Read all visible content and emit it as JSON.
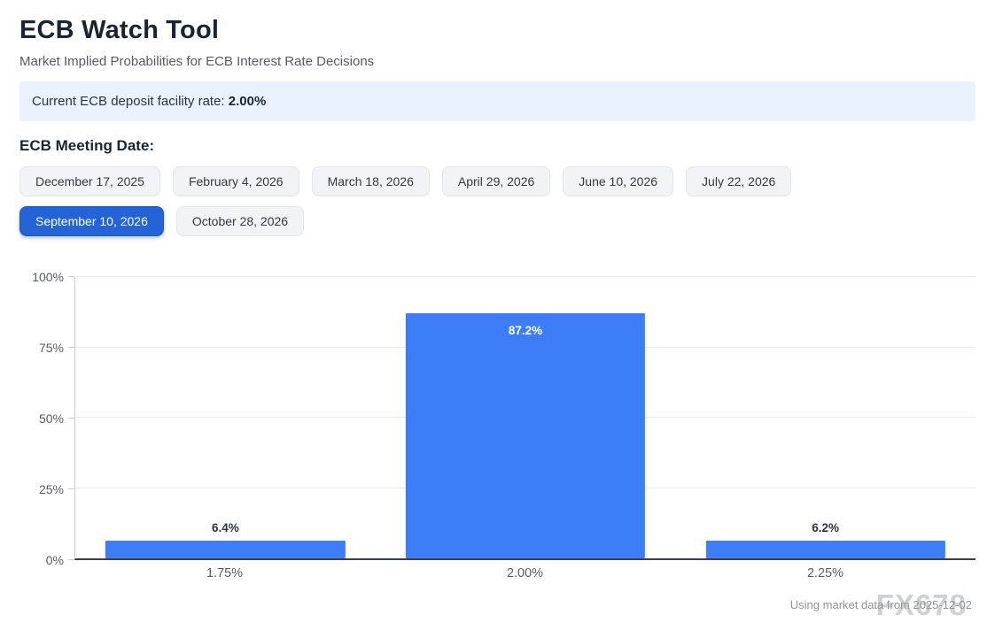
{
  "page": {
    "title": "ECB Watch Tool",
    "subtitle": "Market Implied Probabilities for ECB Interest Rate Decisions"
  },
  "info_bar": {
    "label": "Current ECB deposit facility rate: ",
    "value": "2.00%"
  },
  "meeting_section": {
    "heading": "ECB Meeting Date:",
    "dates": [
      {
        "label": "December 17, 2025",
        "selected": false
      },
      {
        "label": "February 4, 2026",
        "selected": false
      },
      {
        "label": "March 18, 2026",
        "selected": false
      },
      {
        "label": "April 29, 2026",
        "selected": false
      },
      {
        "label": "June 10, 2026",
        "selected": false
      },
      {
        "label": "July 22, 2026",
        "selected": false
      },
      {
        "label": "September 10, 2026",
        "selected": true
      },
      {
        "label": "October 28, 2026",
        "selected": false
      }
    ]
  },
  "chart_data": {
    "type": "bar",
    "categories": [
      "1.75%",
      "2.00%",
      "2.25%"
    ],
    "values": [
      6.4,
      87.2,
      6.2
    ],
    "value_labels": [
      "6.4%",
      "87.2%",
      "6.2%"
    ],
    "y_tick_values": [
      0,
      25,
      50,
      75,
      100
    ],
    "y_tick_labels": [
      "0%",
      "25%",
      "50%",
      "75%",
      "100%"
    ],
    "ylim": [
      0,
      100
    ],
    "bar_color": "#3d7ef7",
    "grid": true,
    "legend": "none",
    "inside_label_threshold": 20
  },
  "footer": {
    "note": "Using market data from 2025-12-02",
    "watermark": "FX678"
  },
  "colors": {
    "accent_blue": "#2563d9",
    "bar_blue": "#3d7ef7",
    "info_bg": "#e9f2fe"
  }
}
